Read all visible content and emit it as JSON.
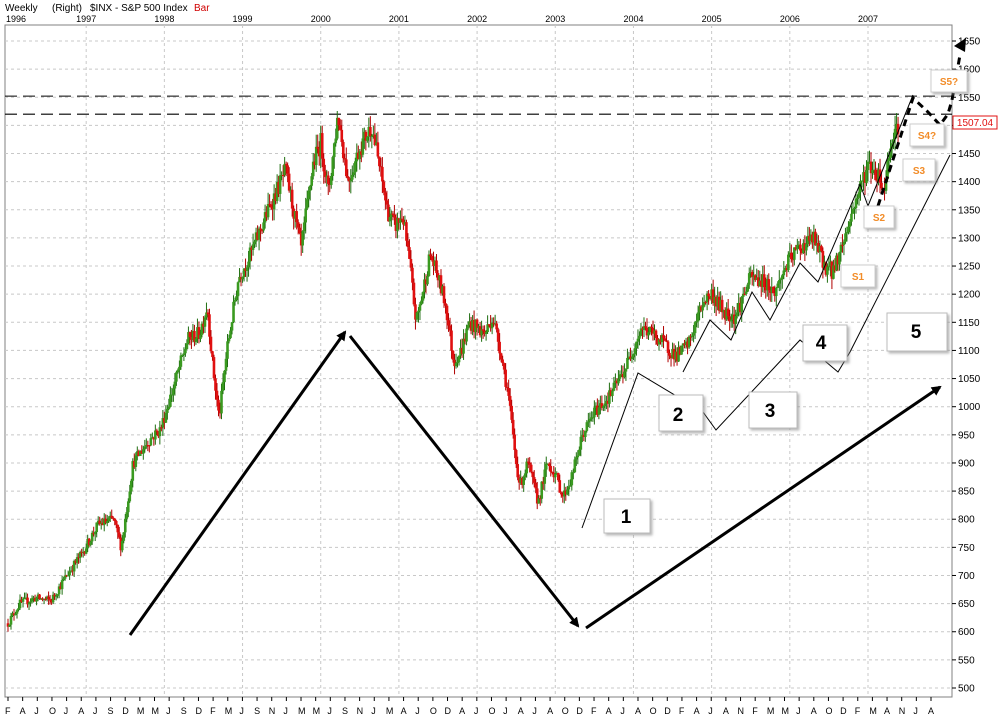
{
  "header": {
    "period": "Weekly",
    "scale": "(Right)",
    "symbol": "$INX - S&P 500 Index",
    "style": "Bar"
  },
  "colors": {
    "up": "#3a9a20",
    "down": "#e01010",
    "grid": "#c8c8c8",
    "arrow": "#000000",
    "sbox": "#f28c28",
    "price_label": "#e01010"
  },
  "chart_data": {
    "type": "bar",
    "title": "$INX - S&P 500 Index",
    "y_axis": {
      "position": "right",
      "ticks": [
        500,
        550,
        600,
        650,
        700,
        750,
        800,
        850,
        900,
        950,
        1000,
        1050,
        1100,
        1150,
        1200,
        1250,
        1300,
        1350,
        1400,
        1450,
        1500,
        1550,
        1600,
        1650
      ],
      "ylim": [
        490,
        1675
      ]
    },
    "x_axis": {
      "years": [
        "1996",
        "1997",
        "1998",
        "1999",
        "2000",
        "2001",
        "2002",
        "2003",
        "2004",
        "2005",
        "2006",
        "2007"
      ],
      "month_letters": [
        "F",
        "A",
        "J",
        "O",
        "J",
        "A",
        "J",
        "S",
        "D",
        "M",
        "M",
        "J",
        "S",
        "D",
        "F",
        "M",
        "J",
        "S",
        "N",
        "J",
        "M",
        "M",
        "J",
        "S",
        "N",
        "J",
        "M",
        "A",
        "J",
        "O",
        "D",
        "A",
        "J",
        "O",
        "J",
        "A",
        "J",
        "A",
        "O",
        "D",
        "F",
        "A",
        "J",
        "A",
        "O",
        "D",
        "F",
        "A",
        "J",
        "A",
        "N",
        "F",
        "M",
        "M",
        "J",
        "A",
        "O",
        "D",
        "F",
        "M",
        "A",
        "N",
        "J",
        "A"
      ]
    },
    "price_path": [
      [
        "1996.00",
        615
      ],
      [
        "1996.15",
        650
      ],
      [
        "1996.35",
        660
      ],
      [
        "1996.55",
        655
      ],
      [
        "1996.75",
        700
      ],
      [
        "1996.95",
        740
      ],
      [
        "1997.15",
        790
      ],
      [
        "1997.35",
        800
      ],
      [
        "1997.45",
        750
      ],
      [
        "1997.60",
        900
      ],
      [
        "1997.80",
        940
      ],
      [
        "1997.95",
        960
      ],
      [
        "1998.15",
        1050
      ],
      [
        "1998.30",
        1120
      ],
      [
        "1998.45",
        1130
      ],
      [
        "1998.55",
        1180
      ],
      [
        "1998.62",
        1070
      ],
      [
        "1998.70",
        980
      ],
      [
        "1998.80",
        1100
      ],
      [
        "1998.95",
        1230
      ],
      [
        "1999.10",
        1270
      ],
      [
        "1999.30",
        1340
      ],
      [
        "1999.55",
        1420
      ],
      [
        "1999.75",
        1280
      ],
      [
        "1999.90",
        1430
      ],
      [
        "2000.00",
        1470
      ],
      [
        "2000.10",
        1380
      ],
      [
        "2000.22",
        1520
      ],
      [
        "2000.35",
        1400
      ],
      [
        "2000.50",
        1460
      ],
      [
        "2000.65",
        1500
      ],
      [
        "2000.72",
        1450
      ],
      [
        "2000.85",
        1350
      ],
      [
        "2000.95",
        1320
      ],
      [
        "2001.05",
        1340
      ],
      [
        "2001.15",
        1240
      ],
      [
        "2001.22",
        1150
      ],
      [
        "2001.30",
        1200
      ],
      [
        "2001.40",
        1270
      ],
      [
        "2001.50",
        1230
      ],
      [
        "2001.60",
        1180
      ],
      [
        "2001.70",
        1080
      ],
      [
        "2001.80",
        1100
      ],
      [
        "2001.90",
        1150
      ],
      [
        "2002.00",
        1140
      ],
      [
        "2002.10",
        1130
      ],
      [
        "2002.20",
        1160
      ],
      [
        "2002.30",
        1100
      ],
      [
        "2002.40",
        1020
      ],
      [
        "2002.50",
        900
      ],
      [
        "2002.55",
        860
      ],
      [
        "2002.65",
        900
      ],
      [
        "2002.78",
        830
      ],
      [
        "2002.90",
        900
      ],
      [
        "2003.00",
        880
      ],
      [
        "2003.10",
        840
      ],
      [
        "2003.20",
        870
      ],
      [
        "2003.35",
        950
      ],
      [
        "2003.50",
        990
      ],
      [
        "2003.70",
        1020
      ],
      [
        "2003.90",
        1070
      ],
      [
        "2004.10",
        1140
      ],
      [
        "2004.25",
        1130
      ],
      [
        "2004.40",
        1110
      ],
      [
        "2004.55",
        1090
      ],
      [
        "2004.70",
        1110
      ],
      [
        "2004.90",
        1190
      ],
      [
        "2005.00",
        1200
      ],
      [
        "2005.15",
        1170
      ],
      [
        "2005.30",
        1160
      ],
      [
        "2005.50",
        1230
      ],
      [
        "2005.70",
        1220
      ],
      [
        "2005.80",
        1200
      ],
      [
        "2005.95",
        1250
      ],
      [
        "2006.10",
        1280
      ],
      [
        "2006.30",
        1300
      ],
      [
        "2006.45",
        1250
      ],
      [
        "2006.55",
        1240
      ],
      [
        "2006.70",
        1300
      ],
      [
        "2006.85",
        1370
      ],
      [
        "2007.00",
        1430
      ],
      [
        "2007.15",
        1410
      ],
      [
        "2007.20",
        1380
      ],
      [
        "2007.30",
        1480
      ],
      [
        "2007.40",
        1507
      ]
    ],
    "last_price_label": "1507.04",
    "horizontal_lines": [
      1552,
      1520
    ],
    "wave_labels": [
      "1",
      "2",
      "3",
      "4",
      "5"
    ],
    "subwave_labels": [
      "S1",
      "S2",
      "S3",
      "S4?",
      "S5?"
    ]
  }
}
